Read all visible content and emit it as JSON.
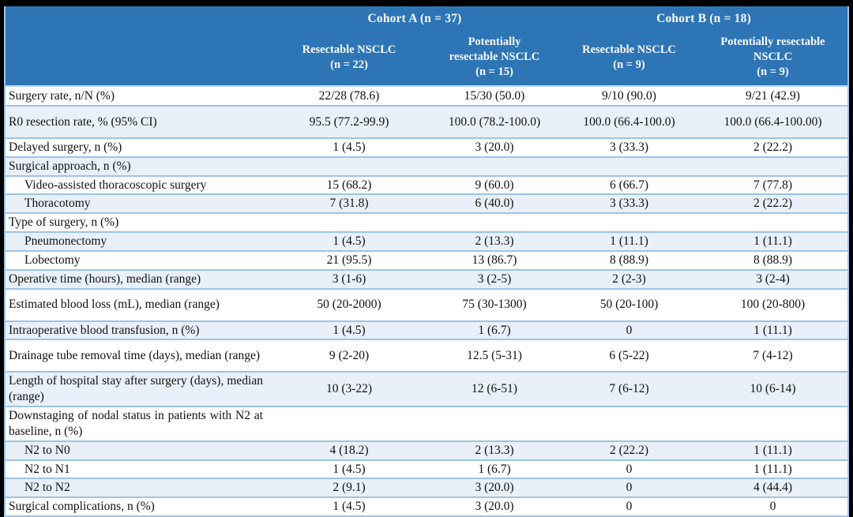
{
  "colors": {
    "header_bg": "#2E75B6",
    "header_text": "#F8FBFE",
    "band_row_bg": "#E9F0F9",
    "grid_line": "#9DC3E6",
    "frame": "#000000"
  },
  "table": {
    "header": {
      "corner": "",
      "groups": [
        {
          "label": "Cohort A (n = 37)"
        },
        {
          "label": "Cohort B (n = 18)"
        }
      ],
      "columns": [
        "Resectable NSCLC\n(n = 22)",
        "Potentially\nresectable NSCLC\n(n = 15)",
        "Resectable NSCLC\n(n = 9)",
        "Potentially resectable\nNSCLC\n(n = 9)"
      ]
    },
    "rows": [
      {
        "label": "Surgery rate, n/N (%)",
        "indent": false,
        "tall": false,
        "values": [
          "22/28 (78.6)",
          "15/30 (50.0)",
          "9/10 (90.0)",
          "9/21 (42.9)"
        ]
      },
      {
        "label": "R0 resection rate, % (95% CI)",
        "indent": false,
        "tall": true,
        "values": [
          "95.5 (77.2-99.9)",
          "100.0 (78.2-100.0)",
          "100.0 (66.4-100.0)",
          "100.0 (66.4-100.00)"
        ]
      },
      {
        "label": "Delayed surgery, n (%)",
        "indent": false,
        "tall": false,
        "values": [
          "1 (4.5)",
          "3 (20.0)",
          "3 (33.3)",
          "2 (22.2)"
        ]
      },
      {
        "label": "Surgical approach, n (%)",
        "indent": false,
        "tall": false,
        "values": [
          "",
          "",
          "",
          ""
        ]
      },
      {
        "label": "Video-assisted thoracoscopic surgery",
        "indent": true,
        "tall": false,
        "values": [
          "15 (68.2)",
          "9 (60.0)",
          "6 (66.7)",
          "7 (77.8)"
        ]
      },
      {
        "label": "Thoracotomy",
        "indent": true,
        "tall": false,
        "values": [
          "7 (31.8)",
          "6 (40.0)",
          "3 (33.3)",
          "2 (22.2)"
        ]
      },
      {
        "label": "Type of surgery, n (%)",
        "indent": false,
        "tall": false,
        "values": [
          "",
          "",
          "",
          ""
        ]
      },
      {
        "label": "Pneumonectomy",
        "indent": true,
        "tall": false,
        "values": [
          "1 (4.5)",
          "2 (13.3)",
          "1 (11.1)",
          "1 (11.1)"
        ]
      },
      {
        "label": "Lobectomy",
        "indent": true,
        "tall": false,
        "values": [
          "21 (95.5)",
          "13 (86.7)",
          "8 (88.9)",
          "8 (88.9)"
        ]
      },
      {
        "label": "Operative time (hours), median (range)",
        "indent": false,
        "tall": false,
        "values": [
          "3 (1-6)",
          "3 (2-5)",
          "2 (2-3)",
          "3 (2-4)"
        ]
      },
      {
        "label": "Estimated blood loss (mL), median (range)",
        "indent": false,
        "tall": true,
        "values": [
          "50 (20-2000)",
          "75 (30-1300)",
          "50 (20-100)",
          "100 (20-800)"
        ]
      },
      {
        "label": "Intraoperative blood transfusion, n (%)",
        "indent": false,
        "tall": false,
        "values": [
          "1 (4.5)",
          "1 (6.7)",
          "0",
          "1 (11.1)"
        ]
      },
      {
        "label": "Drainage tube removal time (days), median (range)",
        "indent": false,
        "tall": true,
        "values": [
          "9 (2-20)",
          "12.5 (5-31)",
          "6 (5-22)",
          "7 (4-12)"
        ]
      },
      {
        "label": "Length of hospital stay after surgery (days), median (range)",
        "indent": false,
        "tall": true,
        "values": [
          "10 (3-22)",
          "12 (6-51)",
          "7 (6-12)",
          "10 (6-14)"
        ]
      },
      {
        "label": "Downstaging of nodal status in patients with N2 at baseline, n (%)",
        "indent": false,
        "tall": true,
        "values": [
          "",
          "",
          "",
          ""
        ]
      },
      {
        "label": "N2 to N0",
        "indent": true,
        "tall": false,
        "values": [
          "4 (18.2)",
          "2 (13.3)",
          "2 (22.2)",
          "1 (11.1)"
        ]
      },
      {
        "label": "N2 to N1",
        "indent": true,
        "tall": false,
        "values": [
          "1 (4.5)",
          "1 (6.7)",
          "0",
          "1 (11.1)"
        ]
      },
      {
        "label": "N2 to N2",
        "indent": true,
        "tall": false,
        "values": [
          "2 (9.1)",
          "3 (20.0)",
          "0",
          "4 (44.4)"
        ]
      },
      {
        "label": "Surgical complications, n (%)",
        "indent": false,
        "tall": false,
        "values": [
          "1 (4.5)",
          "3 (20.0)",
          "0",
          "0"
        ]
      }
    ]
  }
}
